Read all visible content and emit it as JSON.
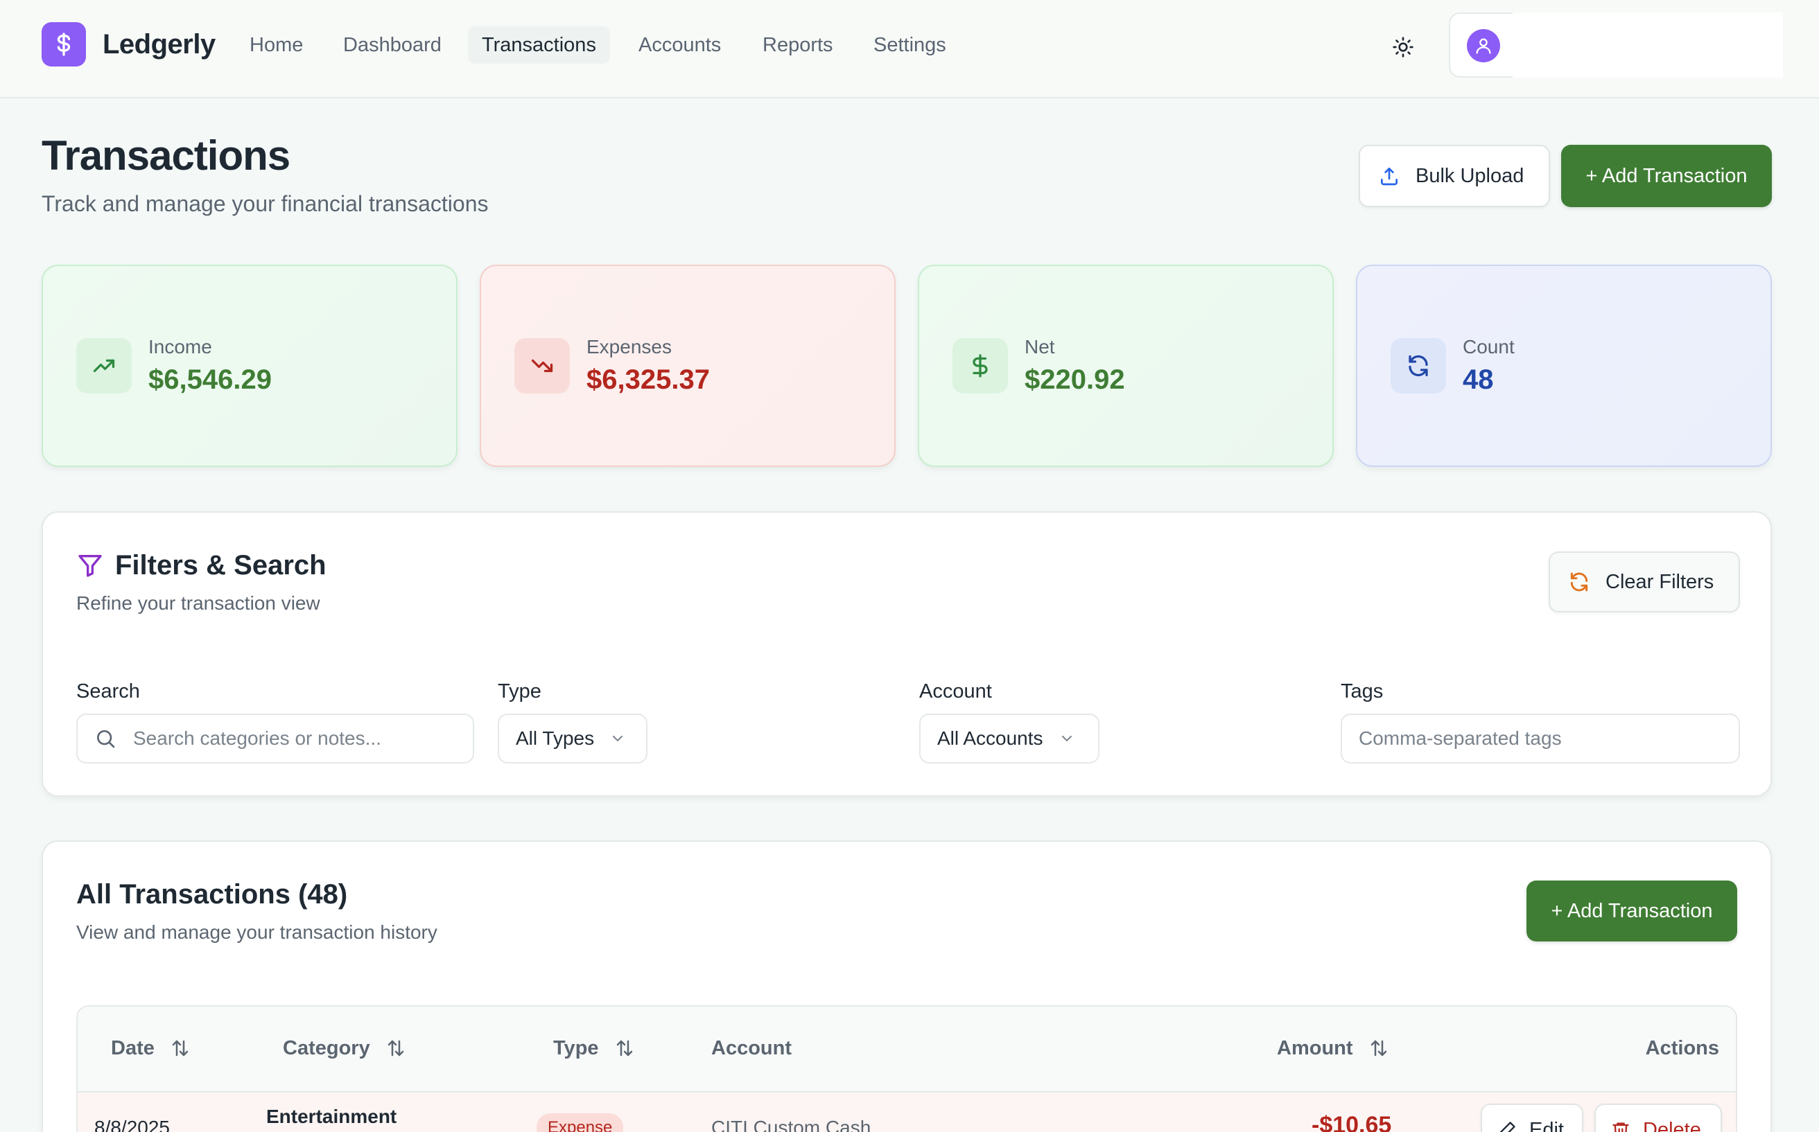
{
  "nav": {
    "brand": "Ledgerly",
    "items": [
      {
        "label": "Home"
      },
      {
        "label": "Dashboard"
      },
      {
        "label": "Transactions",
        "active": true
      },
      {
        "label": "Accounts"
      },
      {
        "label": "Reports"
      },
      {
        "label": "Settings"
      }
    ]
  },
  "header": {
    "title": "Transactions",
    "subtitle": "Track and manage your financial transactions",
    "bulk_upload_label": "Bulk Upload",
    "add_transaction_label": "+ Add Transaction"
  },
  "stats": {
    "income": {
      "label": "Income",
      "value": "$6,546.29",
      "color": "#3f7d34"
    },
    "expenses": {
      "label": "Expenses",
      "value": "$6,325.37",
      "color": "#b3261e"
    },
    "net": {
      "label": "Net",
      "value": "$220.92",
      "color": "#3f7d34"
    },
    "count": {
      "label": "Count",
      "value": "48",
      "color": "#2147a8"
    }
  },
  "filters": {
    "title": "Filters & Search",
    "subtitle": "Refine your transaction view",
    "clear_label": "Clear Filters",
    "search_label": "Search",
    "search_placeholder": "Search categories or notes...",
    "type_label": "Type",
    "type_value": "All Types",
    "account_label": "Account",
    "account_value": "All Accounts",
    "tags_label": "Tags",
    "tags_placeholder": "Comma-separated tags"
  },
  "transactions": {
    "title": "All Transactions (48)",
    "subtitle": "View and manage your transaction history",
    "add_label": "+ Add Transaction",
    "columns": {
      "date": "Date",
      "category": "Category",
      "type": "Type",
      "account": "Account",
      "amount": "Amount",
      "actions": "Actions"
    },
    "rows": [
      {
        "date": "8/8/2025",
        "category": "Entertainment",
        "type": "Expense",
        "account": "CITI Custom Cash",
        "amount": "-$10.65",
        "edit_label": "Edit",
        "delete_label": "Delete"
      }
    ]
  },
  "colors": {
    "brand": "#8b5cf6",
    "primary_green": "#3f7d34",
    "expense_red": "#b3261e"
  }
}
